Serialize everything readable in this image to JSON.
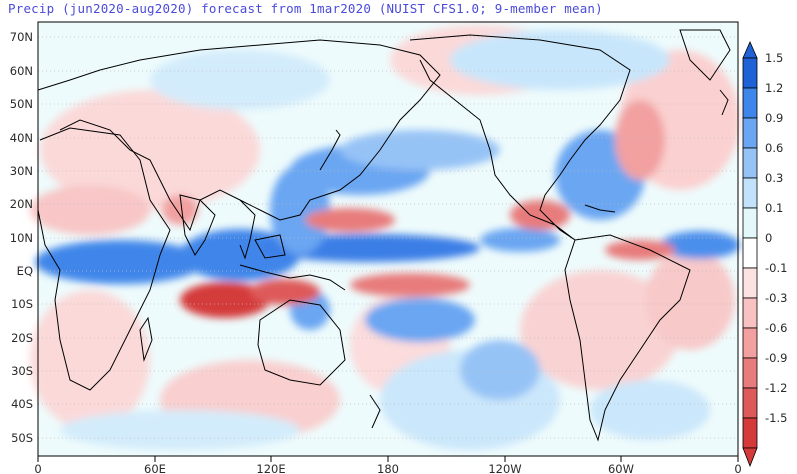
{
  "title": "Precip (jun2020-aug2020) forecast from 1mar2020 (NUIST CFS1.0; 9-member mean)",
  "lat_labels": [
    "70N",
    "60N",
    "50N",
    "40N",
    "30N",
    "20N",
    "10N",
    "EQ",
    "10S",
    "20S",
    "30S",
    "40S",
    "50S"
  ],
  "lon_labels": [
    "0",
    "60E",
    "120E",
    "180",
    "120W",
    "60W",
    "0"
  ],
  "colorbar": {
    "labels": [
      "1.5",
      "1.2",
      "0.9",
      "0.6",
      "0.3",
      "0.1",
      "0",
      "-0.1",
      "-0.3",
      "-0.6",
      "-0.9",
      "-1.2",
      "-1.5"
    ],
    "colors": [
      "#1f62d6",
      "#3f86ea",
      "#6aa6f2",
      "#96c3f6",
      "#c2e2fb",
      "#e3f8fb",
      "#ffffff",
      "#fde2e2",
      "#f8c2c2",
      "#f2a0a0",
      "#e87c7c",
      "#de5a5a",
      "#d43a3a"
    ]
  }
}
